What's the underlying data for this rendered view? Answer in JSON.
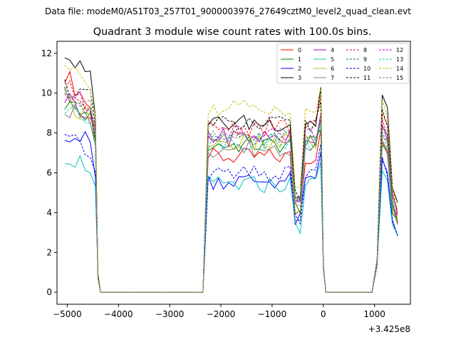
{
  "chart_data": {
    "type": "line",
    "suptitle": "Data file: modeM0/AS1T03_257T01_9000003976_27649cztM0_level2_quad_clean.evt",
    "title": "Quadrant 3 module wise count rates with 100.0s bins.",
    "xlabel": "",
    "ylabel": "",
    "x_offset_label": "+3.425e8",
    "xlim": [
      -5200,
      1700
    ],
    "ylim": [
      -0.6,
      12.6
    ],
    "xticks": [
      -5000,
      -4000,
      -3000,
      -2000,
      -1000,
      0,
      1000
    ],
    "xtick_labels": [
      "−5000",
      "−4000",
      "−3000",
      "−2000",
      "−1000",
      "0",
      "1000"
    ],
    "yticks": [
      0,
      2,
      4,
      6,
      8,
      10,
      12
    ],
    "ytick_labels": [
      "0",
      "2",
      "4",
      "6",
      "8",
      "10",
      "12"
    ],
    "grid": false,
    "legend_position": "top-right",
    "legend_columns": 4,
    "series": [
      {
        "name": "0",
        "color": "#ff0000",
        "dash": "solid",
        "levels": [
          11.0,
          9.3,
          7.3,
          0.0,
          6.8,
          4.1,
          7.8
        ]
      },
      {
        "name": "1",
        "color": "#008000",
        "dash": "solid",
        "levels": [
          9.5,
          8.7,
          7.4,
          0.0,
          7.4,
          4.3,
          7.6
        ]
      },
      {
        "name": "2",
        "color": "#0000ff",
        "dash": "solid",
        "levels": [
          8.1,
          7.5,
          5.7,
          0.0,
          5.6,
          3.6,
          6.5
        ]
      },
      {
        "name": "3",
        "color": "#000000",
        "dash": "solid",
        "levels": [
          12.0,
          10.7,
          8.7,
          0.0,
          8.5,
          4.9,
          9.7
        ]
      },
      {
        "name": "4",
        "color": "#bf00bf",
        "dash": "solid",
        "levels": [
          9.8,
          9.0,
          7.9,
          0.0,
          7.8,
          4.4,
          8.2
        ]
      },
      {
        "name": "5",
        "color": "#00bfbf",
        "dash": "solid",
        "levels": [
          6.9,
          6.3,
          5.2,
          0.0,
          5.4,
          3.3,
          6.0
        ]
      },
      {
        "name": "6",
        "color": "#bfbf00",
        "dash": "solid",
        "levels": [
          9.6,
          8.9,
          7.6,
          0.0,
          7.5,
          4.2,
          8.0
        ]
      },
      {
        "name": "7",
        "color": "#808080",
        "dash": "solid",
        "levels": [
          9.3,
          8.6,
          7.2,
          0.0,
          7.2,
          4.0,
          7.9
        ]
      },
      {
        "name": "8",
        "color": "#ff0000",
        "dash": "dashed",
        "levels": [
          10.3,
          9.6,
          8.2,
          0.0,
          8.3,
          4.6,
          9.0
        ]
      },
      {
        "name": "9",
        "color": "#008000",
        "dash": "dashed",
        "levels": [
          9.9,
          9.2,
          7.8,
          0.0,
          7.7,
          4.4,
          8.3
        ]
      },
      {
        "name": "10",
        "color": "#0000ff",
        "dash": "dashed",
        "levels": [
          7.7,
          7.0,
          5.9,
          0.0,
          5.9,
          3.8,
          6.6
        ]
      },
      {
        "name": "11",
        "color": "#000000",
        "dash": "dashed",
        "levels": [
          10.4,
          9.7,
          8.3,
          0.0,
          8.4,
          4.8,
          9.1
        ]
      },
      {
        "name": "12",
        "color": "#bf00bf",
        "dash": "dashed",
        "levels": [
          10.0,
          9.3,
          8.0,
          0.0,
          7.9,
          4.5,
          8.4
        ]
      },
      {
        "name": "13",
        "color": "#00bfbf",
        "dash": "dashed",
        "levels": [
          9.2,
          8.5,
          7.7,
          0.0,
          7.6,
          4.3,
          7.9
        ]
      },
      {
        "name": "14",
        "color": "#bfbf00",
        "dash": "dashed",
        "levels": [
          11.4,
          10.2,
          8.8,
          0.0,
          9.3,
          5.1,
          9.5
        ]
      },
      {
        "name": "15",
        "color": "#808080",
        "dash": "dashed",
        "levels": [
          10.1,
          9.4,
          7.9,
          0.0,
          7.8,
          4.3,
          8.1
        ]
      }
    ]
  }
}
